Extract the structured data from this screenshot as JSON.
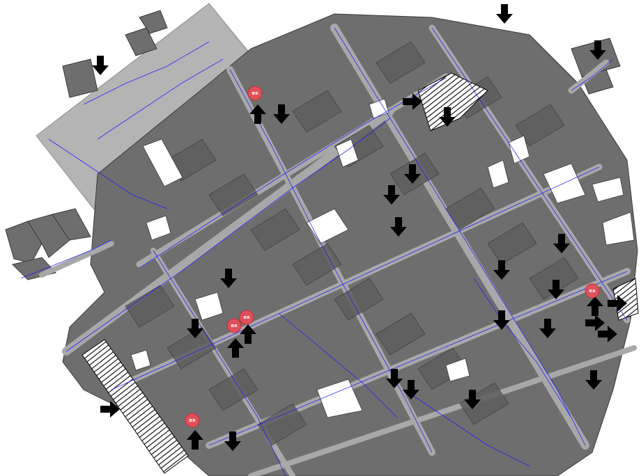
{
  "map": {
    "view": "isometric-city-block-map",
    "colors": {
      "background": "#ffffff",
      "building": "#6e6e6e",
      "building_dark": "#4e4e4e",
      "building_outline": "#3a3a3a",
      "open_plaza": "#b4b4b4",
      "street": "#a8a8a8",
      "path_lines": "#1a1aff",
      "marker": "#e0505a",
      "hatch": "#000000"
    },
    "legend_shown": false,
    "marker_label": "ex",
    "arrow_icons": {
      "down": "down-arrow-icon",
      "up": "up-arrow-icon",
      "right": "right-arrow-icon"
    }
  }
}
